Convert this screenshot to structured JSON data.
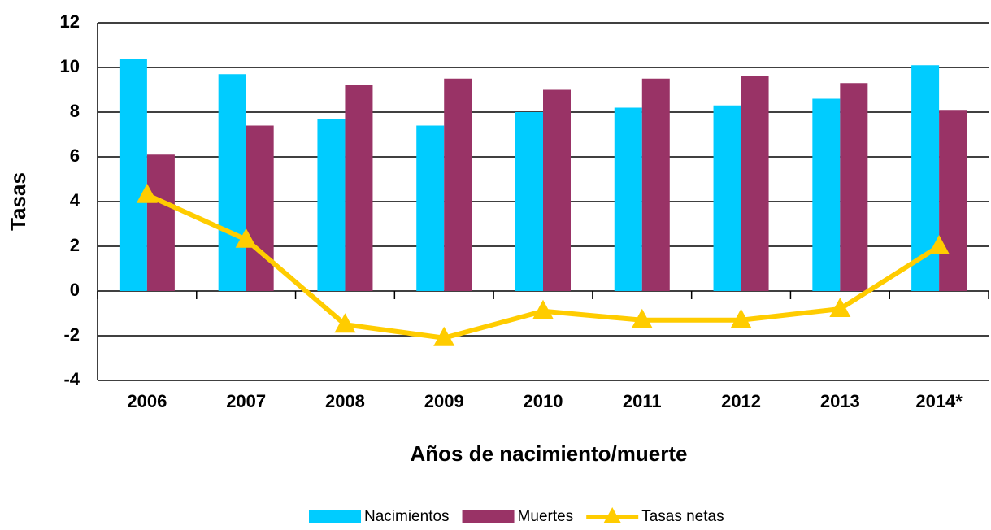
{
  "chart_data": {
    "type": "bar_line",
    "x_label": "Años de nacimiento/muerte",
    "y_label": "Tasas",
    "categories": [
      "2006",
      "2007",
      "2008",
      "2009",
      "2010",
      "2011",
      "2012",
      "2013",
      "2014*"
    ],
    "series": [
      {
        "name": "Nacimientos",
        "type": "bar",
        "color": "#00ccff",
        "values": [
          10.4,
          9.7,
          7.7,
          7.4,
          8.0,
          8.2,
          8.3,
          8.6,
          10.1
        ]
      },
      {
        "name": "Muertes",
        "type": "bar",
        "color": "#993366",
        "values": [
          6.1,
          7.4,
          9.2,
          9.5,
          9.0,
          9.5,
          9.6,
          9.3,
          8.1
        ]
      },
      {
        "name": "Tasas netas",
        "type": "line",
        "color": "#ffcc00",
        "values": [
          4.3,
          2.3,
          -1.5,
          -2.1,
          -0.9,
          -1.3,
          -1.3,
          -0.8,
          2.0
        ]
      }
    ],
    "ylim": [
      -4,
      12
    ],
    "yticks": [
      -4,
      -2,
      0,
      2,
      4,
      6,
      8,
      10,
      12
    ],
    "grid": true,
    "legend": "bottom"
  }
}
